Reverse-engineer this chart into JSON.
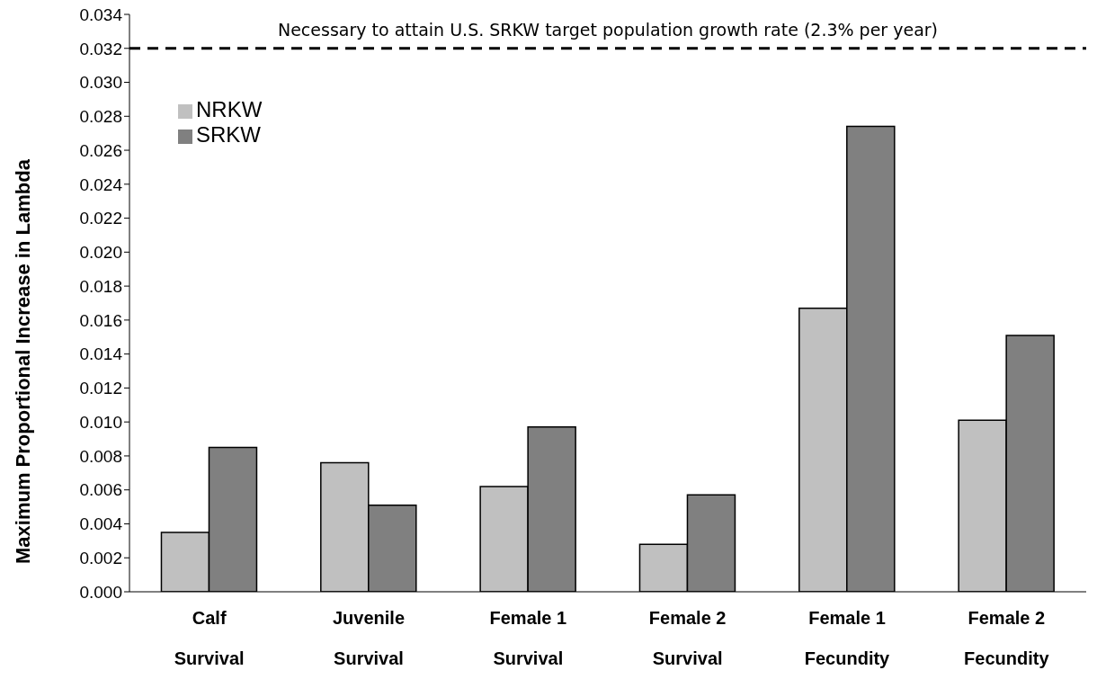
{
  "chart_data": {
    "type": "bar",
    "ylabel": "Maximum Proportional Increase in Lambda",
    "categories": [
      "Calf\nSurvival",
      "Juvenile\nSurvival",
      "Female 1\nSurvival",
      "Female 2\nSurvival",
      "Female 1\nFecundity",
      "Female 2\nFecundity"
    ],
    "series": [
      {
        "name": "NRKW",
        "color": "#c0c0c0",
        "values": [
          0.0035,
          0.0076,
          0.0062,
          0.0028,
          0.0167,
          0.0101
        ]
      },
      {
        "name": "SRKW",
        "color": "#808080",
        "values": [
          0.0085,
          0.0051,
          0.0097,
          0.0057,
          0.0274,
          0.0151
        ]
      }
    ],
    "ylim": [
      0,
      0.034
    ],
    "yticks": [
      {
        "value": 0,
        "label": "0.000"
      },
      {
        "value": 0.002,
        "label": "0.002"
      },
      {
        "value": 0.004,
        "label": "0.004"
      },
      {
        "value": 0.006,
        "label": "0.006"
      },
      {
        "value": 0.008,
        "label": "0.008"
      },
      {
        "value": 0.01,
        "label": "0.010"
      },
      {
        "value": 0.012,
        "label": "0.012"
      },
      {
        "value": 0.014,
        "label": "0.014"
      },
      {
        "value": 0.016,
        "label": "0.016"
      },
      {
        "value": 0.018,
        "label": "0.018"
      },
      {
        "value": 0.02,
        "label": "0.020"
      },
      {
        "value": 0.022,
        "label": "0.022"
      },
      {
        "value": 0.024,
        "label": "0.024"
      },
      {
        "value": 0.026,
        "label": "0.026"
      },
      {
        "value": 0.028,
        "label": "0.028"
      },
      {
        "value": 0.03,
        "label": "0.030"
      },
      {
        "value": 0.032,
        "label": "0.032"
      },
      {
        "value": 0.034,
        "label": "0.034"
      }
    ],
    "ref_lines": [
      {
        "axis": "y",
        "value": 0.032,
        "label": "Necessary to attain U.S. SRKW target population growth rate (2.3% per year)",
        "color": "#000000",
        "line_style": "dashed"
      }
    ],
    "grid": false,
    "legend": "top left"
  }
}
